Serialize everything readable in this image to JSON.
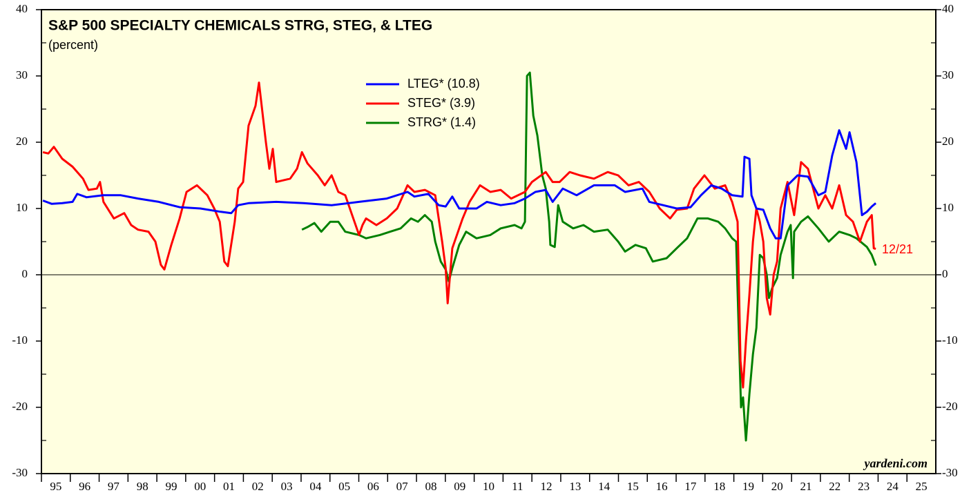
{
  "chart_data": {
    "type": "line",
    "title": "S&P 500 SPECIALTY CHEMICALS STRG, STEG, & LTEG",
    "subtitle": "(percent)",
    "annotation": "12/21",
    "source": "yardeni.com",
    "xlim": [
      1995,
      2026
    ],
    "xticks": [
      {
        "value": 1995,
        "label": "95"
      },
      {
        "value": 1996,
        "label": "96"
      },
      {
        "value": 1997,
        "label": "97"
      },
      {
        "value": 1998,
        "label": "98"
      },
      {
        "value": 1999,
        "label": "99"
      },
      {
        "value": 2000,
        "label": "00"
      },
      {
        "value": 2001,
        "label": "01"
      },
      {
        "value": 2002,
        "label": "02"
      },
      {
        "value": 2003,
        "label": "03"
      },
      {
        "value": 2004,
        "label": "04"
      },
      {
        "value": 2005,
        "label": "05"
      },
      {
        "value": 2006,
        "label": "06"
      },
      {
        "value": 2007,
        "label": "07"
      },
      {
        "value": 2008,
        "label": "08"
      },
      {
        "value": 2009,
        "label": "09"
      },
      {
        "value": 2010,
        "label": "10"
      },
      {
        "value": 2011,
        "label": "11"
      },
      {
        "value": 2012,
        "label": "12"
      },
      {
        "value": 2013,
        "label": "13"
      },
      {
        "value": 2014,
        "label": "14"
      },
      {
        "value": 2015,
        "label": "15"
      },
      {
        "value": 2016,
        "label": "16"
      },
      {
        "value": 2017,
        "label": "17"
      },
      {
        "value": 2018,
        "label": "18"
      },
      {
        "value": 2019,
        "label": "19"
      },
      {
        "value": 2020,
        "label": "20"
      },
      {
        "value": 2021,
        "label": "21"
      },
      {
        "value": 2022,
        "label": "22"
      },
      {
        "value": 2023,
        "label": "23"
      },
      {
        "value": 2024,
        "label": "24"
      },
      {
        "value": 2025,
        "label": "25"
      }
    ],
    "ylim": [
      -30,
      40
    ],
    "yticks": [
      -30,
      -20,
      -10,
      0,
      10,
      20,
      30,
      40
    ],
    "series": [
      {
        "name": "LTEG* (10.8)",
        "color": "#0000ff",
        "x": [
          1995.05,
          1995.36,
          1995.72,
          1996.08,
          1996.24,
          1996.56,
          1997.15,
          1997.75,
          1998.35,
          1999.07,
          1999.79,
          2000.51,
          2001.22,
          2001.58,
          2001.82,
          2002.18,
          2003.14,
          2004.1,
          2005.06,
          2006.01,
          2006.97,
          2007.69,
          2007.93,
          2008.41,
          2008.77,
          2009.01,
          2009.24,
          2009.48,
          2010.08,
          2010.44,
          2010.92,
          2011.4,
          2011.76,
          2012.12,
          2012.48,
          2012.72,
          2013.07,
          2013.55,
          2014.15,
          2014.87,
          2015.23,
          2015.83,
          2016.07,
          2016.55,
          2017.02,
          2017.5,
          2017.86,
          2018.22,
          2018.58,
          2018.94,
          2019.3,
          2019.37,
          2019.54,
          2019.61,
          2019.78,
          2020.02,
          2020.26,
          2020.45,
          2020.62,
          2020.86,
          2021.21,
          2021.57,
          2021.93,
          2022.17,
          2022.41,
          2022.65,
          2022.89,
          2023.01,
          2023.25,
          2023.44,
          2023.61,
          2023.78,
          2023.92
        ],
        "values": [
          11.2,
          10.7,
          10.8,
          11,
          12.2,
          11.7,
          12,
          12,
          11.5,
          11,
          10.2,
          10,
          9.5,
          9.3,
          10.5,
          10.8,
          11,
          10.8,
          10.5,
          11,
          11.5,
          12.5,
          11.8,
          12.2,
          10.5,
          10.3,
          11.8,
          10,
          10,
          11,
          10.5,
          10.8,
          11.5,
          12.5,
          12.8,
          11,
          13,
          12,
          13.5,
          13.5,
          12.5,
          13,
          11,
          10.5,
          10,
          10.2,
          12,
          13.5,
          13,
          12,
          11.8,
          17.8,
          17.5,
          12,
          10,
          9.8,
          7,
          5.5,
          5.5,
          13.5,
          15,
          14.8,
          12,
          12.5,
          18,
          21.8,
          19,
          21.5,
          17,
          9,
          9.5,
          10.3,
          10.8
        ]
      },
      {
        "name": "STEG* (3.9)",
        "color": "#ff0000",
        "x": [
          1995.05,
          1995.24,
          1995.43,
          1995.72,
          1996.08,
          1996.44,
          1996.63,
          1996.92,
          1997.03,
          1997.15,
          1997.51,
          1997.87,
          1998.11,
          1998.35,
          1998.71,
          1998.95,
          1999.14,
          1999.26,
          1999.5,
          1999.79,
          2000.03,
          2000.39,
          2000.75,
          2000.99,
          2001.18,
          2001.34,
          2001.46,
          2001.7,
          2001.82,
          2001.99,
          2002.18,
          2002.42,
          2002.54,
          2002.78,
          2002.9,
          2003.02,
          2003.14,
          2003.62,
          2003.86,
          2004.03,
          2004.22,
          2004.58,
          2004.82,
          2005.06,
          2005.29,
          2005.53,
          2005.77,
          2006.01,
          2006.13,
          2006.25,
          2006.61,
          2006.97,
          2007.33,
          2007.69,
          2007.93,
          2008.29,
          2008.65,
          2008.89,
          2009.01,
          2009.08,
          2009.24,
          2009.6,
          2009.84,
          2010.2,
          2010.56,
          2010.92,
          2011.28,
          2011.76,
          2012.0,
          2012.48,
          2012.72,
          2012.96,
          2013.31,
          2013.67,
          2014.15,
          2014.63,
          2014.99,
          2015.35,
          2015.71,
          2016.07,
          2016.43,
          2016.67,
          2016.79,
          2017.02,
          2017.38,
          2017.62,
          2017.98,
          2018.34,
          2018.7,
          2018.94,
          2019.13,
          2019.23,
          2019.32,
          2019.42,
          2019.54,
          2019.66,
          2019.78,
          2019.9,
          2020.02,
          2020.14,
          2020.26,
          2020.38,
          2020.5,
          2020.62,
          2020.86,
          2021.09,
          2021.33,
          2021.57,
          2021.93,
          2022.17,
          2022.41,
          2022.65,
          2022.89,
          2023.13,
          2023.37,
          2023.61,
          2023.78,
          2023.85,
          2023.92
        ],
        "values": [
          18.5,
          18.3,
          19.3,
          17.5,
          16.3,
          14.5,
          12.8,
          13,
          14,
          11,
          8.5,
          9.3,
          7.5,
          6.8,
          6.5,
          5,
          1.5,
          0.8,
          4.5,
          8.5,
          12.5,
          13.5,
          12,
          10,
          8,
          2,
          1.3,
          8,
          13,
          14,
          22.5,
          25.5,
          29,
          20,
          16,
          19,
          14,
          14.5,
          16,
          18.5,
          16.8,
          15,
          13.5,
          15,
          12.5,
          12,
          9,
          6,
          7.5,
          8.5,
          7.5,
          8.5,
          10,
          13.5,
          12.5,
          12.8,
          12,
          5,
          1,
          -4.3,
          4,
          8.5,
          11,
          13.5,
          12.5,
          12.8,
          11.5,
          12.5,
          14,
          15.5,
          14,
          14,
          15.5,
          15,
          14.5,
          15.5,
          15,
          13.5,
          14,
          12.5,
          10,
          9,
          8.5,
          9.8,
          10,
          13,
          15,
          13,
          13.5,
          11,
          8,
          -13,
          -17,
          -10,
          -3,
          5,
          10,
          8,
          5,
          -3.5,
          -6,
          0,
          2,
          10,
          14,
          9,
          17,
          16,
          10,
          12,
          10,
          13.5,
          9,
          8,
          5,
          8,
          9,
          4,
          3.9
        ]
      },
      {
        "name": "STRG* (1.4)",
        "color": "#008000",
        "x": [
          2004.03,
          2004.22,
          2004.46,
          2004.7,
          2005.01,
          2005.29,
          2005.53,
          2006.01,
          2006.25,
          2006.73,
          2007.09,
          2007.45,
          2007.81,
          2008.05,
          2008.29,
          2008.53,
          2008.65,
          2008.84,
          2009.01,
          2009.12,
          2009.24,
          2009.48,
          2009.72,
          2010.08,
          2010.56,
          2010.92,
          2011.4,
          2011.64,
          2011.76,
          2011.83,
          2011.93,
          2012.05,
          2012.19,
          2012.36,
          2012.48,
          2012.6,
          2012.64,
          2012.79,
          2012.91,
          2013.07,
          2013.43,
          2013.79,
          2014.15,
          2014.63,
          2014.99,
          2015.23,
          2015.59,
          2015.95,
          2016.19,
          2016.67,
          2017.02,
          2017.38,
          2017.74,
          2018.1,
          2018.46,
          2018.7,
          2018.94,
          2019.08,
          2019.18,
          2019.25,
          2019.32,
          2019.42,
          2019.54,
          2019.66,
          2019.78,
          2019.9,
          2020.02,
          2020.14,
          2020.22,
          2020.33,
          2020.5,
          2020.62,
          2020.86,
          2020.97,
          2021.05,
          2021.09,
          2021.33,
          2021.57,
          2021.93,
          2022.29,
          2022.65,
          2023.01,
          2023.25,
          2023.61,
          2023.78,
          2023.92
        ],
        "values": [
          6.8,
          7.2,
          7.8,
          6.5,
          8,
          8,
          6.5,
          6,
          5.5,
          6,
          6.5,
          7,
          8.5,
          8,
          9,
          8,
          5,
          2,
          0.8,
          -1,
          1,
          4.5,
          6.5,
          5.5,
          6,
          7,
          7.5,
          7,
          8,
          30,
          30.5,
          24,
          21,
          15,
          13,
          8,
          4.5,
          4.2,
          10.5,
          8,
          7,
          7.5,
          6.5,
          6.8,
          5,
          3.5,
          4.5,
          4,
          2,
          2.5,
          4,
          5.5,
          8.5,
          8.5,
          8,
          7,
          5.5,
          5,
          -10,
          -20,
          -18.5,
          -25,
          -18,
          -12,
          -8,
          3,
          2.5,
          0,
          -3.5,
          -2,
          -0.5,
          3,
          6.5,
          7.5,
          -0.5,
          6.5,
          8,
          8.8,
          7,
          5,
          6.5,
          6,
          5.5,
          4.2,
          3,
          1.4
        ]
      }
    ]
  }
}
